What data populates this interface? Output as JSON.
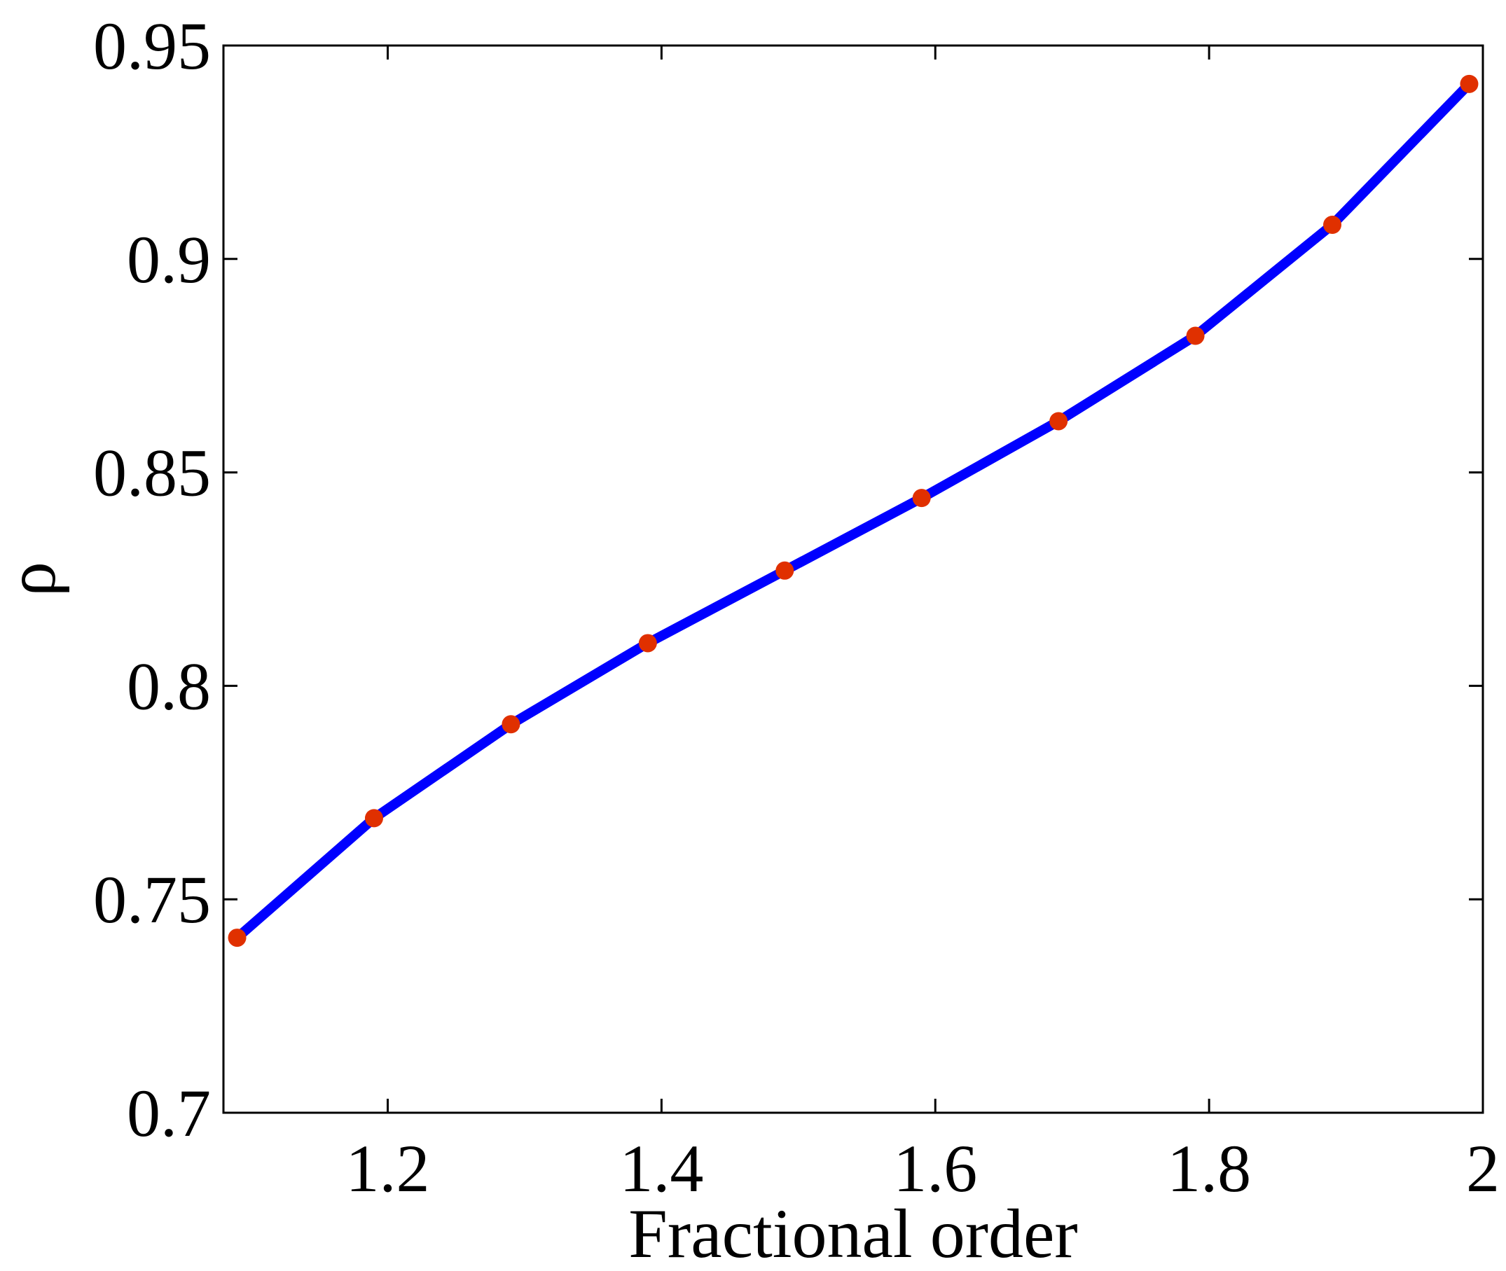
{
  "chart_data": {
    "type": "line",
    "xlabel": "Fractional order",
    "ylabel": "ρ",
    "xlim": [
      1.08,
      2.0
    ],
    "ylim": [
      0.7,
      0.95
    ],
    "xticks": [
      1.2,
      1.4,
      1.6,
      1.8,
      2.0
    ],
    "xtick_labels": [
      "1.2",
      "1.4",
      "1.6",
      "1.8",
      "2"
    ],
    "yticks": [
      0.7,
      0.75,
      0.8,
      0.85,
      0.9,
      0.95
    ],
    "ytick_labels": [
      "0.7",
      "0.75",
      "0.8",
      "0.85",
      "0.9",
      "0.95"
    ],
    "grid": false,
    "series": [
      {
        "x": [
          1.09,
          1.19,
          1.29,
          1.39,
          1.49,
          1.59,
          1.69,
          1.79,
          1.89,
          1.99
        ],
        "y": [
          0.741,
          0.769,
          0.791,
          0.81,
          0.827,
          0.844,
          0.862,
          0.882,
          0.908,
          0.941
        ],
        "line_color": "#0000ff",
        "marker_color": "#e03000"
      }
    ]
  }
}
